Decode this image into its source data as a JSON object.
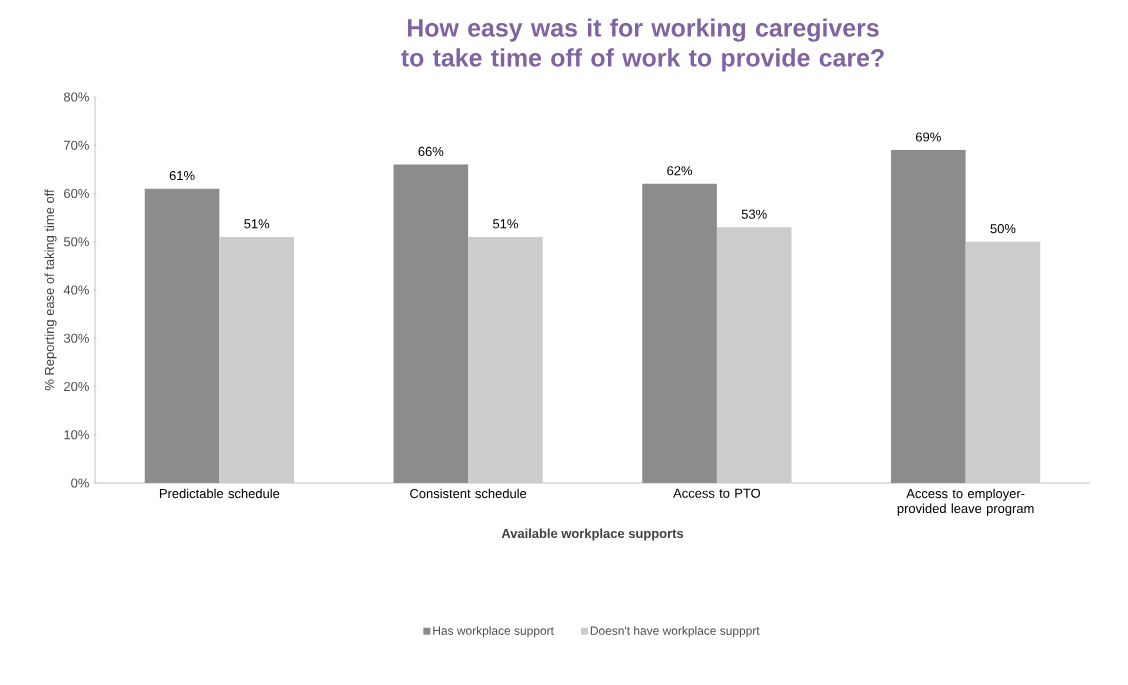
{
  "chart_data": {
    "type": "bar",
    "title": "How easy was it for working caregivers to take time off of work to provide care?",
    "xlabel": "Available workplace supports",
    "ylabel": "% Reporting ease of taking time off",
    "categories": [
      "Predictable schedule",
      "Consistent schedule",
      "Access to PTO",
      "Access to employer-provided leave program"
    ],
    "series": [
      {
        "name": "Has workplace support",
        "color": "#8c8c8c",
        "values": [
          61,
          66,
          62,
          69
        ],
        "value_labels": [
          "61%",
          "66%",
          "62%",
          "69%"
        ]
      },
      {
        "name": "Doesn't have workplace suppprt",
        "color": "#cccccc",
        "values": [
          51,
          51,
          53,
          50
        ],
        "value_labels": [
          "51%",
          "51%",
          "53%",
          "50%"
        ]
      }
    ],
    "ylim": [
      0,
      80
    ],
    "yticks": [
      {
        "value": 0,
        "label": "0%"
      },
      {
        "value": 10,
        "label": "10%"
      },
      {
        "value": 20,
        "label": "20%"
      },
      {
        "value": 30,
        "label": "30%"
      },
      {
        "value": 40,
        "label": "40%"
      },
      {
        "value": 50,
        "label": "50%"
      },
      {
        "value": 60,
        "label": "60%"
      },
      {
        "value": 70,
        "label": "70%"
      },
      {
        "value": 80,
        "label": "80%"
      }
    ],
    "grid": false,
    "legend": "bottom"
  }
}
